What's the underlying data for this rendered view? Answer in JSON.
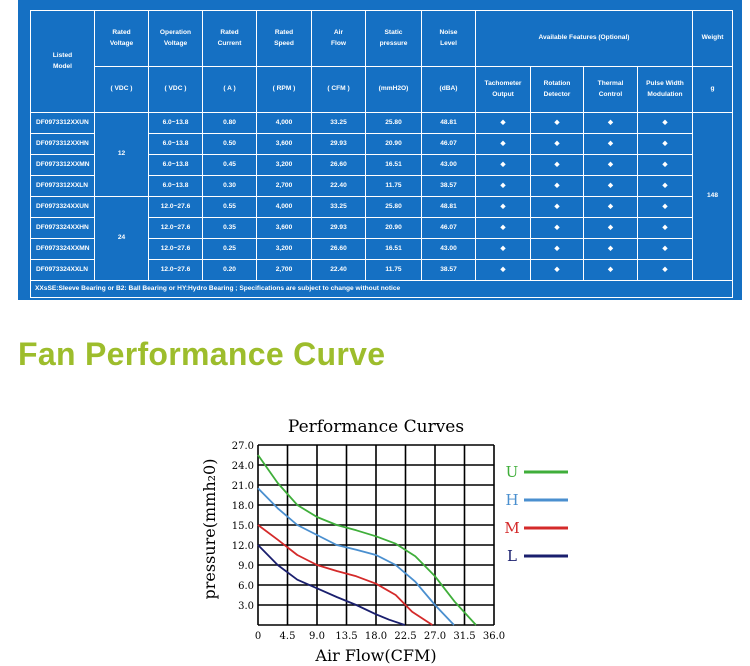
{
  "colors": {
    "panel": "#1570c3",
    "title": "#9dbd2c",
    "line": "#ffffff"
  },
  "table": {
    "headers": {
      "model": [
        "Listed",
        "Model"
      ],
      "voltage": [
        "Rated",
        "Voltage"
      ],
      "op_voltage": [
        "Operation",
        "Voltage"
      ],
      "current": [
        "Rated",
        "Current"
      ],
      "speed": [
        "Rated",
        "Speed"
      ],
      "airflow": [
        "Air",
        "Flow"
      ],
      "pressure": [
        "Static",
        "pressure"
      ],
      "noise": [
        "Noise",
        "Level"
      ],
      "features": "Available Features (Optional)",
      "weight": "Weight"
    },
    "units": {
      "voltage": "( VDC )",
      "op_voltage": "( VDC )",
      "current": "( A )",
      "speed": "( RPM )",
      "airflow": "( CFM )",
      "pressure": "(mmH2O)",
      "noise": "(dBA)",
      "weight": "g"
    },
    "feature_headers": [
      [
        "Tachometer",
        "Output"
      ],
      [
        "Rotation",
        "Detector"
      ],
      [
        "Thermal",
        "Control"
      ],
      [
        "Pulse Width",
        "Modulation"
      ]
    ],
    "voltage_groups": [
      "12",
      "24"
    ],
    "weight_value": "148",
    "feature_mark": "◆",
    "rows": [
      {
        "model": "DF0973312XXUN",
        "op_voltage": "6.0~13.8",
        "current": "0.80",
        "speed": "4,000",
        "airflow": "33.25",
        "pressure": "25.80",
        "noise": "48.81"
      },
      {
        "model": "DF0973312XXHN",
        "op_voltage": "6.0~13.8",
        "current": "0.50",
        "speed": "3,600",
        "airflow": "29.93",
        "pressure": "20.90",
        "noise": "46.07"
      },
      {
        "model": "DF0973312XXMN",
        "op_voltage": "6.0~13.8",
        "current": "0.45",
        "speed": "3,200",
        "airflow": "26.60",
        "pressure": "16.51",
        "noise": "43.00"
      },
      {
        "model": "DF0973312XXLN",
        "op_voltage": "6.0~13.8",
        "current": "0.30",
        "speed": "2,700",
        "airflow": "22.40",
        "pressure": "11.75",
        "noise": "38.57"
      },
      {
        "model": "DF0973324XXUN",
        "op_voltage": "12.0~27.6",
        "current": "0.55",
        "speed": "4,000",
        "airflow": "33.25",
        "pressure": "25.80",
        "noise": "48.81"
      },
      {
        "model": "DF0973324XXHN",
        "op_voltage": "12.0~27.6",
        "current": "0.35",
        "speed": "3,600",
        "airflow": "29.93",
        "pressure": "20.90",
        "noise": "46.07"
      },
      {
        "model": "DF0973324XXMN",
        "op_voltage": "12.0~27.6",
        "current": "0.25",
        "speed": "3,200",
        "airflow": "26.60",
        "pressure": "16.51",
        "noise": "43.00"
      },
      {
        "model": "DF0973324XXLN",
        "op_voltage": "12.0~27.6",
        "current": "0.20",
        "speed": "2,700",
        "airflow": "22.40",
        "pressure": "11.75",
        "noise": "38.57"
      }
    ],
    "note": "XXsSE:Sleeve Bearing or B2: Ball Bearing or HY:Hydro Bearing ; Specifications are subject to change without notice"
  },
  "section_title": "Fan Performance Curve",
  "chart_data": {
    "type": "line",
    "title": "Performance Curves",
    "xlabel": "Air Flow(CFM)",
    "ylabel": "pressure(mmh₂0)",
    "xlim": [
      0,
      36
    ],
    "ylim": [
      0,
      27
    ],
    "x_ticks": [
      "0",
      "4.5",
      "9.0",
      "13.5",
      "18.0",
      "22.5",
      "27.0",
      "31.5",
      "36.0"
    ],
    "y_ticks": [
      "3.0",
      "6.0",
      "9.0",
      "12.0",
      "15.0",
      "18.0",
      "21.0",
      "24.0",
      "27.0"
    ],
    "grid": true,
    "legend_position": "right",
    "series": [
      {
        "name": "L",
        "color": "#1a1f6e",
        "points": [
          [
            0,
            12.0
          ],
          [
            3,
            9.0
          ],
          [
            6,
            6.8
          ],
          [
            9,
            5.5
          ],
          [
            12,
            4.2
          ],
          [
            15,
            3.0
          ],
          [
            18,
            1.6
          ],
          [
            20,
            0.8
          ],
          [
            22.4,
            0
          ]
        ]
      },
      {
        "name": "M",
        "color": "#d42a2a",
        "points": [
          [
            0,
            15.0
          ],
          [
            3,
            12.8
          ],
          [
            6,
            10.5
          ],
          [
            9,
            9.0
          ],
          [
            12,
            8.1
          ],
          [
            15,
            7.3
          ],
          [
            18,
            6.2
          ],
          [
            21,
            4.5
          ],
          [
            23.5,
            2.0
          ],
          [
            26.6,
            0
          ]
        ]
      },
      {
        "name": "H",
        "color": "#4a8fcf",
        "points": [
          [
            0,
            20.5
          ],
          [
            3,
            17.5
          ],
          [
            6,
            15.0
          ],
          [
            9,
            13.5
          ],
          [
            12,
            12.0
          ],
          [
            15,
            11.3
          ],
          [
            18,
            10.5
          ],
          [
            21,
            9.0
          ],
          [
            24,
            6.5
          ],
          [
            27,
            3.0
          ],
          [
            29.9,
            0
          ]
        ]
      },
      {
        "name": "U",
        "color": "#3fae3a",
        "points": [
          [
            0,
            25.5
          ],
          [
            3,
            21.3
          ],
          [
            6,
            18.0
          ],
          [
            9,
            16.2
          ],
          [
            12,
            15.0
          ],
          [
            15,
            14.2
          ],
          [
            18,
            13.3
          ],
          [
            21,
            12.2
          ],
          [
            24,
            10.3
          ],
          [
            27,
            7.3
          ],
          [
            30,
            3.5
          ],
          [
            33.25,
            0
          ]
        ]
      }
    ]
  }
}
